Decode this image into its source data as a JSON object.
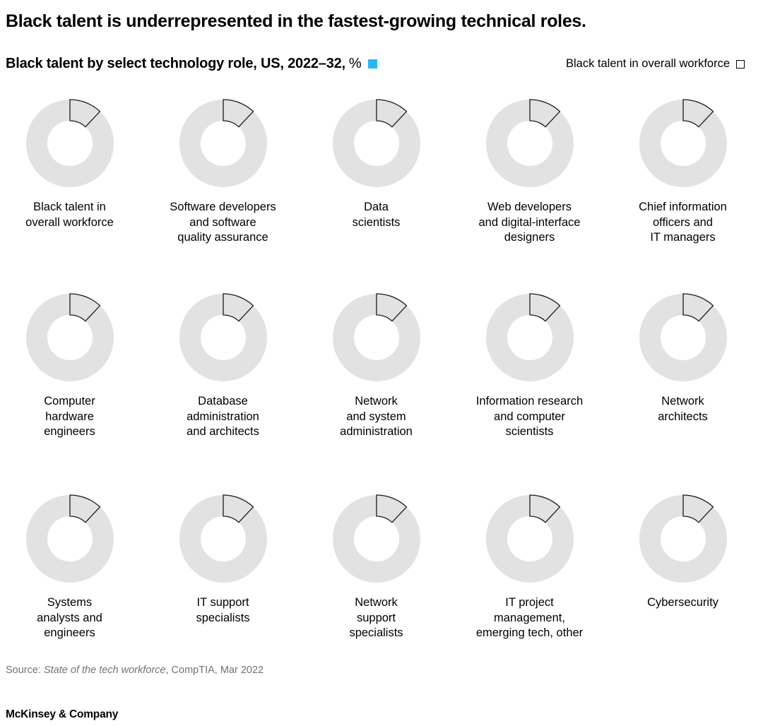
{
  "header": {
    "title": "Black talent is underrepresented in the fastest-growing technical roles.",
    "subtitle_bold": "Black talent by select technology role, US, 2022–32,",
    "subtitle_unit": "%",
    "legend_right_label": "Black talent in overall workforce"
  },
  "colors": {
    "accent_blue": "#29B5F2",
    "donut_gray": "#E2E2E2",
    "wedge_outline": "#1a1a1a",
    "source_gray": "#737373"
  },
  "chart_data": {
    "type": "donut_grid",
    "unit": "%",
    "grid": {
      "columns": 5,
      "rows": 3
    },
    "legend": [
      {
        "name": "Black talent by select technology role",
        "style": "filled",
        "color": "#29B5F2"
      },
      {
        "name": "Black talent in overall workforce",
        "style": "outlined",
        "color": "#ffffff"
      }
    ],
    "outline_reference": {
      "name": "Black talent in overall workforce",
      "value_pct": 12
    },
    "items": [
      {
        "label": [
          "Black talent in",
          "overall workforce"
        ],
        "outline_pct": 12
      },
      {
        "label": [
          "Software developers",
          "and software",
          "quality assurance"
        ],
        "outline_pct": 12
      },
      {
        "label": [
          "Data",
          "scientists"
        ],
        "outline_pct": 12
      },
      {
        "label": [
          "Web developers",
          "and digital-interface",
          "designers"
        ],
        "outline_pct": 12
      },
      {
        "label": [
          "Chief information",
          "officers and",
          "IT managers"
        ],
        "outline_pct": 12
      },
      {
        "label": [
          "Computer",
          "hardware",
          "engineers"
        ],
        "outline_pct": 12
      },
      {
        "label": [
          "Database",
          "administration",
          "and architects"
        ],
        "outline_pct": 12
      },
      {
        "label": [
          "Network",
          "and system",
          "administration"
        ],
        "outline_pct": 12
      },
      {
        "label": [
          "Information research",
          "and computer",
          "scientists"
        ],
        "outline_pct": 12
      },
      {
        "label": [
          "Network",
          "architects"
        ],
        "outline_pct": 12
      },
      {
        "label": [
          "Systems",
          "analysts and",
          "engineers"
        ],
        "outline_pct": 12
      },
      {
        "label": [
          "IT support",
          "specialists"
        ],
        "outline_pct": 12
      },
      {
        "label": [
          "Network",
          "support",
          "specialists"
        ],
        "outline_pct": 12
      },
      {
        "label": [
          "IT project",
          "management,",
          "emerging tech, other"
        ],
        "outline_pct": 12
      },
      {
        "label": [
          "Cybersecurity"
        ],
        "outline_pct": 12
      }
    ]
  },
  "source": {
    "prefix": "Source: ",
    "italic_title": "State of the tech workforce",
    "suffix": ", CompTIA, Mar 2022"
  },
  "footer": {
    "brand": "McKinsey & Company"
  }
}
